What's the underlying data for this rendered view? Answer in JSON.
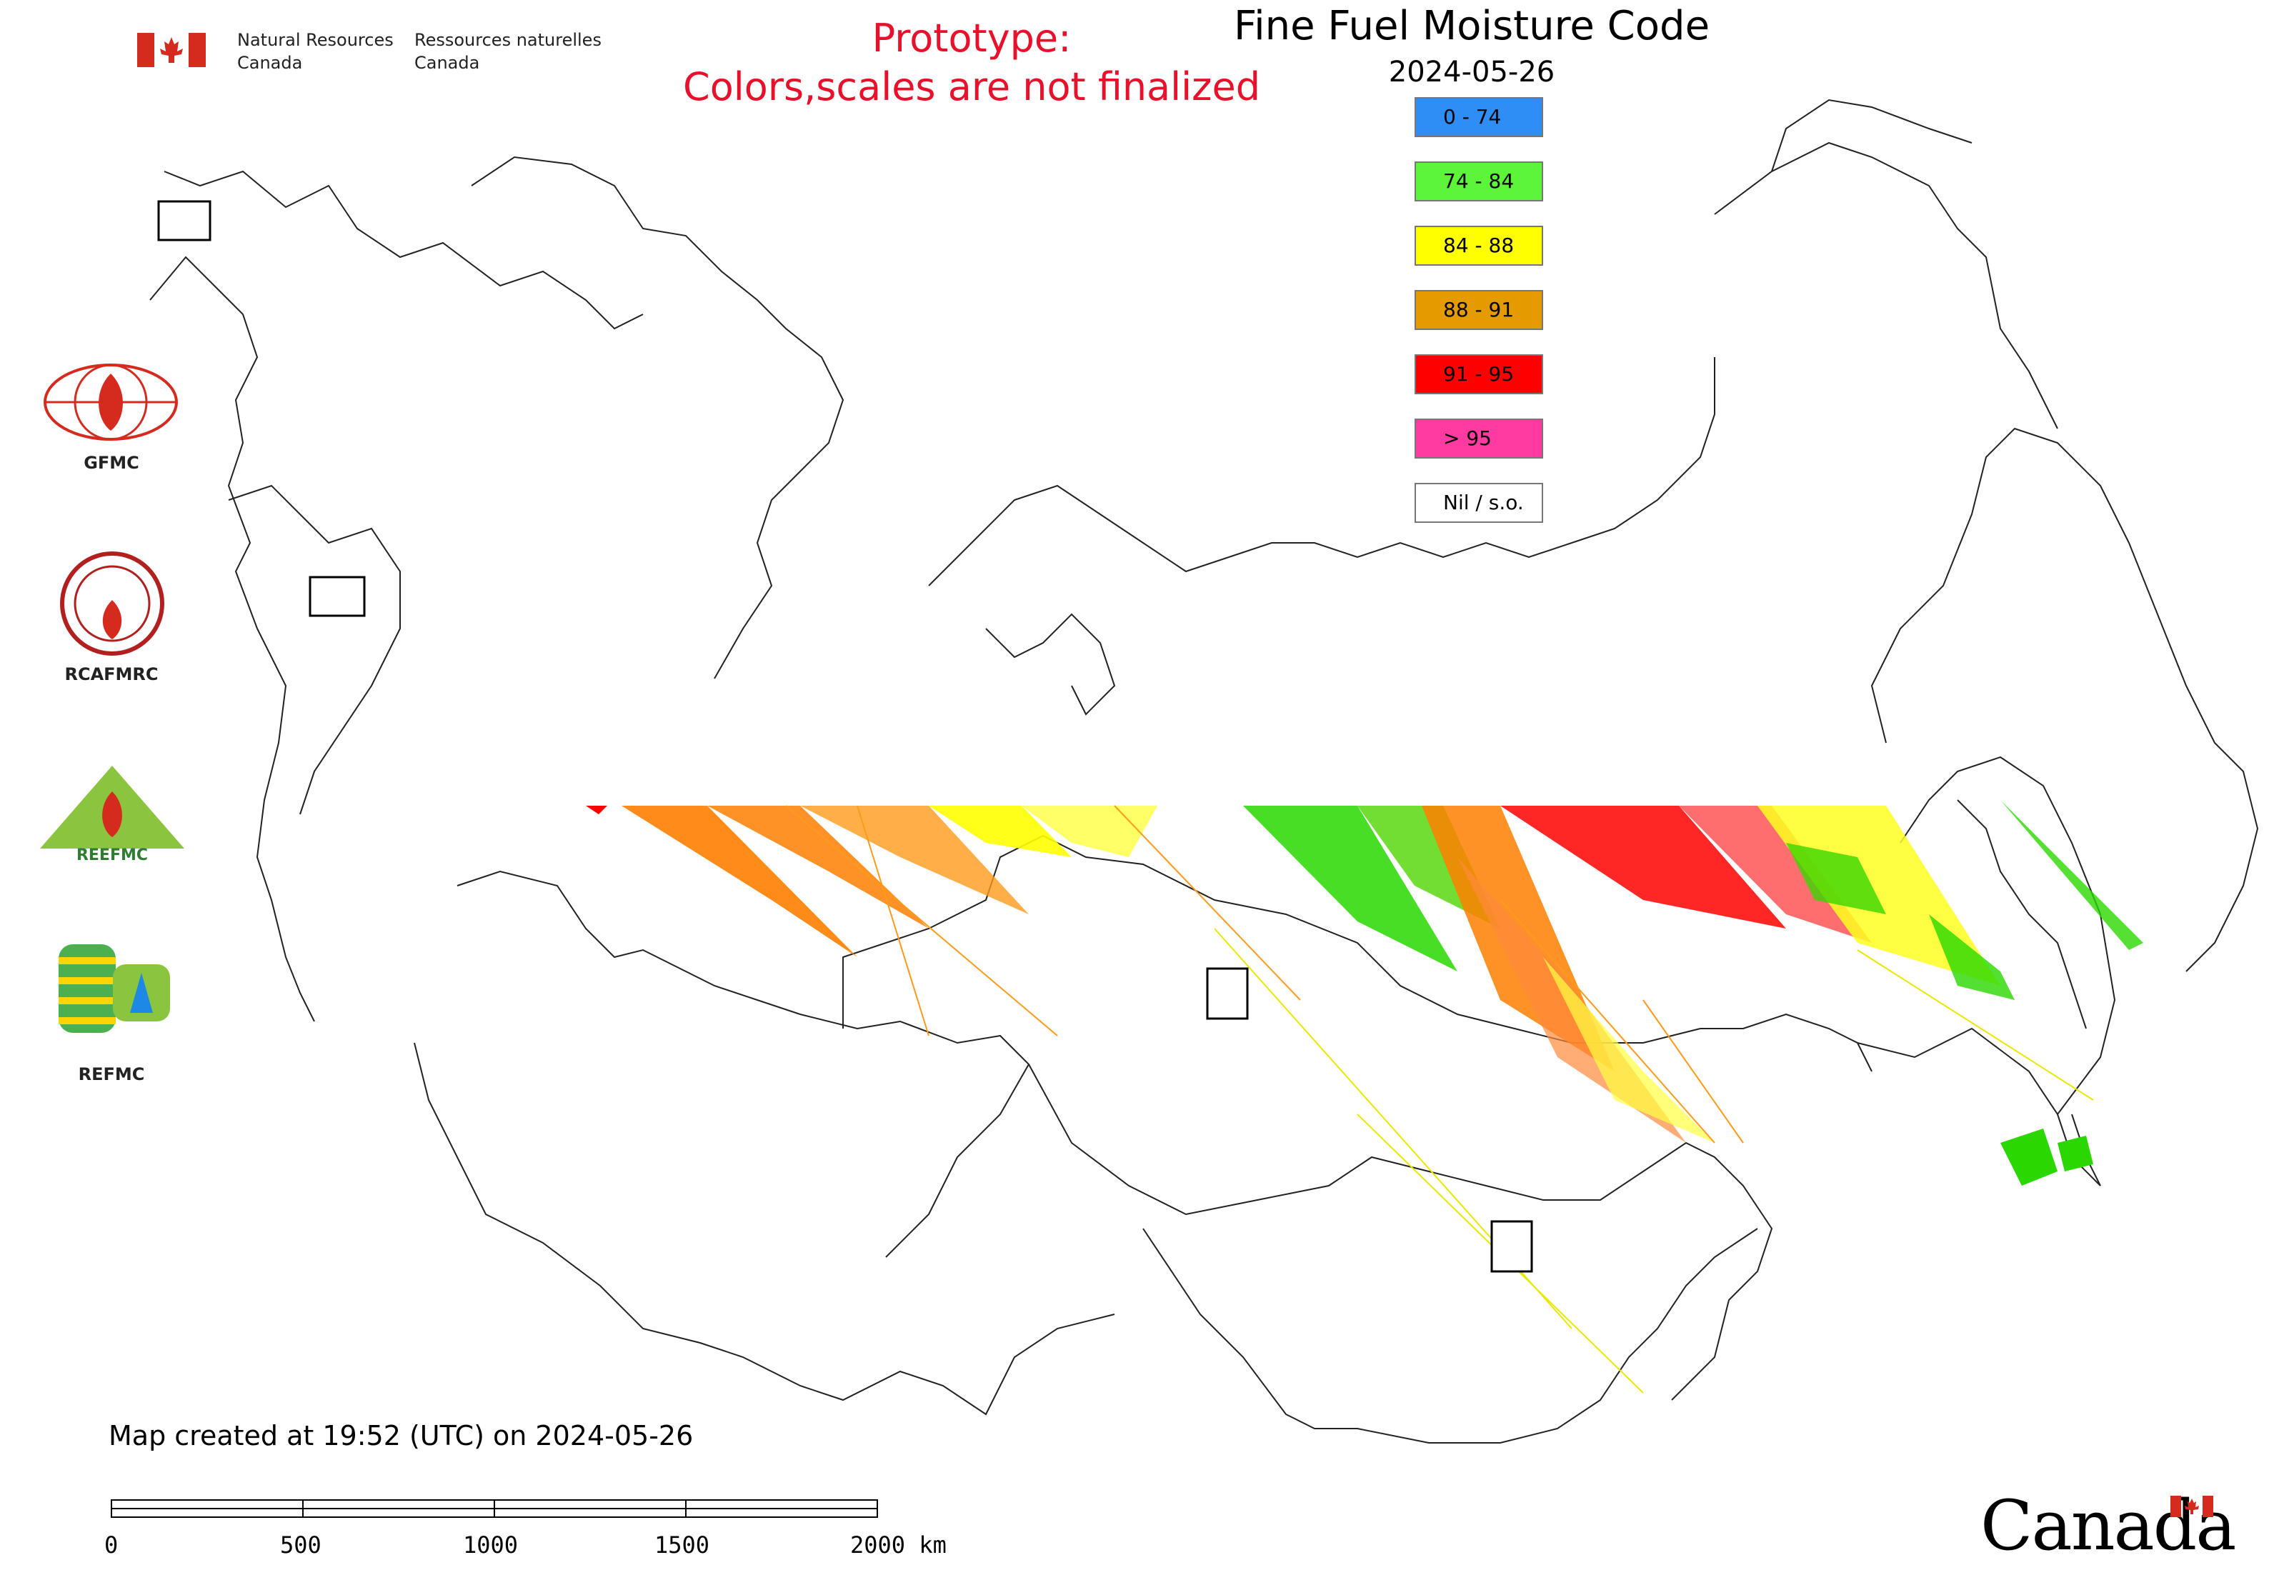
{
  "header": {
    "agency_en_line1": "Natural Resources",
    "agency_en_line2": "Canada",
    "agency_fr_line1": "Ressources naturelles",
    "agency_fr_line2": "Canada",
    "title": "Fine Fuel Moisture Code",
    "date": "2024-05-26",
    "prototype_line1": "Prototype:",
    "prototype_line2": "Colors,scales are not finalized"
  },
  "legend": {
    "items": [
      {
        "label": "0 - 74",
        "color": "#2f8ef5"
      },
      {
        "label": "74 - 84",
        "color": "#5cf53a"
      },
      {
        "label": "84 - 88",
        "color": "#ffff00"
      },
      {
        "label": "88 - 91",
        "color": "#e39b00"
      },
      {
        "label": "91 - 95",
        "color": "#ff0000"
      },
      {
        "label": "> 95",
        "color": "#ff3aa0"
      },
      {
        "label": "Nil / s.o.",
        "color": "#ffffff"
      }
    ]
  },
  "logos": [
    {
      "name": "GFMC",
      "icon": "gfmc-logo"
    },
    {
      "name": "RCAFMRC",
      "icon": "rcafmrc-logo"
    },
    {
      "name": "REEFMC",
      "icon": "reefmc-logo"
    },
    {
      "name": "REFMC",
      "icon": "refmc-logo"
    }
  ],
  "footer": {
    "created": "Map created at 19:52 (UTC) on 2024-05-26",
    "scale_ticks": [
      "0",
      "500",
      "1000",
      "1500",
      "2000 km"
    ],
    "wordmark": "Canada"
  },
  "colors": {
    "prototype_text": "#e8102a",
    "flag_red": "#d52b1e"
  }
}
